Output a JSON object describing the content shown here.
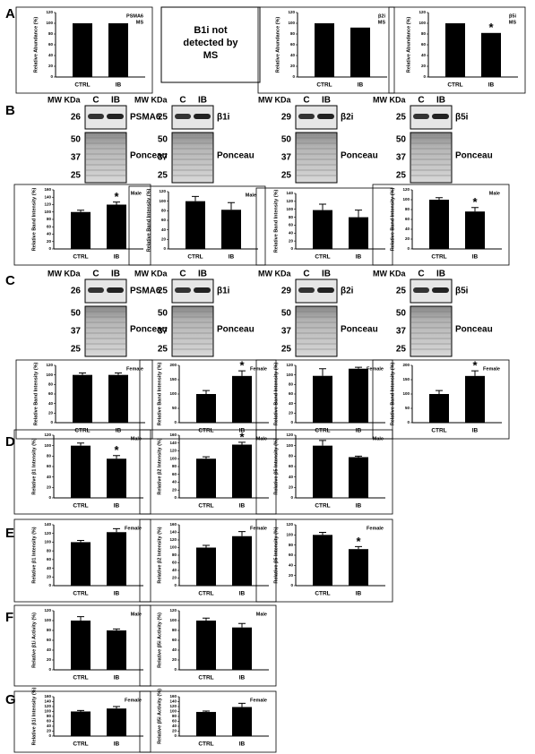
{
  "panels": [
    "A",
    "B",
    "C",
    "D",
    "E",
    "F",
    "G"
  ],
  "ms_note": [
    "B1i not",
    "detected by",
    "MS"
  ],
  "blots": [
    {
      "mw": "MW KDa",
      "lanes": [
        "C",
        "IB"
      ],
      "band_mw": "26",
      "protein": "PSMA6",
      "ponceau_mw": [
        "50",
        "37",
        "25"
      ],
      "ponceau": "Ponceau"
    },
    {
      "mw": "MW KDa",
      "lanes": [
        "C",
        "IB"
      ],
      "band_mw": "25",
      "protein": "β1i",
      "ponceau_mw": [
        "50",
        "37",
        "25"
      ],
      "ponceau": "Ponceau"
    },
    {
      "mw": "MW KDa",
      "lanes": [
        "C",
        "IB"
      ],
      "band_mw": "29",
      "protein": "β2i",
      "ponceau_mw": [
        "50",
        "37",
        "25"
      ],
      "ponceau": "Ponceau"
    },
    {
      "mw": "MW KDa",
      "lanes": [
        "C",
        "IB"
      ],
      "band_mw": "25",
      "protein": "β5i",
      "ponceau_mw": [
        "50",
        "37",
        "25"
      ],
      "ponceau": "Ponceau"
    },
    {
      "mw": "MW KDa",
      "lanes": [
        "C",
        "IB"
      ],
      "band_mw": "26",
      "protein": "PSMA6",
      "ponceau_mw": [
        "50",
        "37",
        "25"
      ],
      "ponceau": "Ponceau"
    },
    {
      "mw": "MW KDa",
      "lanes": [
        "C",
        "IB"
      ],
      "band_mw": "25",
      "protein": "β1i",
      "ponceau_mw": [
        "50",
        "37",
        "25"
      ],
      "ponceau": "Ponceau"
    },
    {
      "mw": "MW KDa",
      "lanes": [
        "C",
        "IB"
      ],
      "band_mw": "29",
      "protein": "β2i",
      "ponceau_mw": [
        "50",
        "37",
        "25"
      ],
      "ponceau": "Ponceau"
    },
    {
      "mw": "MW KDa",
      "lanes": [
        "C",
        "IB"
      ],
      "band_mw": "25",
      "protein": "β5i",
      "ponceau_mw": [
        "50",
        "37",
        "25"
      ],
      "ponceau": "Ponceau"
    }
  ],
  "chart_data": [
    {
      "type": "bar",
      "ylabel": "Relative Abundance (%)",
      "categories": [
        "CTRL",
        "IB"
      ],
      "values": [
        100,
        100
      ],
      "ylim": [
        0,
        120
      ],
      "yticks": [
        0,
        20,
        40,
        60,
        80,
        100,
        120
      ],
      "annotation": [
        "PSMA6",
        "MS"
      ],
      "color": "#000000"
    },
    {
      "type": "bar",
      "ylabel": "Relative Abundance (%)",
      "categories": [
        "CTRL",
        "IB"
      ],
      "values": [
        100,
        92
      ],
      "ylim": [
        0,
        120
      ],
      "yticks": [
        0,
        20,
        40,
        60,
        80,
        100,
        120
      ],
      "annotation": [
        "β2i",
        "MS"
      ],
      "color": "#000000"
    },
    {
      "type": "bar",
      "ylabel": "Relative Abundance (%)",
      "categories": [
        "CTRL",
        "IB"
      ],
      "values": [
        100,
        82
      ],
      "ylim": [
        0,
        120
      ],
      "yticks": [
        0,
        20,
        40,
        60,
        80,
        100,
        120
      ],
      "annotation": [
        "β5i",
        "MS"
      ],
      "significance": "*",
      "color": "#000000"
    },
    {
      "type": "bar",
      "ylabel": "Relative Band Intensity (%)",
      "categories": [
        "CTRL",
        "IB"
      ],
      "values": [
        100,
        120
      ],
      "errors": [
        5,
        7
      ],
      "ylim": [
        0,
        160
      ],
      "yticks": [
        0,
        20,
        40,
        60,
        80,
        100,
        120,
        140,
        160
      ],
      "annotation": [
        "Male"
      ],
      "significance": "*",
      "color": "#000000"
    },
    {
      "type": "bar",
      "ylabel": "Relative Band Intensity (%)",
      "categories": [
        "CTRL",
        "IB"
      ],
      "values": [
        100,
        82
      ],
      "errors": [
        10,
        15
      ],
      "ylim": [
        0,
        120
      ],
      "yticks": [
        0,
        20,
        40,
        60,
        80,
        100,
        120
      ],
      "annotation": [
        "Male"
      ],
      "color": "#000000"
    },
    {
      "type": "bar",
      "ylabel": "Relative Band Intensity (%)",
      "categories": [
        "CTRL",
        "IB"
      ],
      "values": [
        98,
        80
      ],
      "errors": [
        15,
        18
      ],
      "ylim": [
        0,
        140
      ],
      "yticks": [
        0,
        20,
        40,
        60,
        80,
        100,
        120,
        140
      ],
      "color": "#000000"
    },
    {
      "type": "bar",
      "ylabel": "Relative Band Intensity (%)",
      "categories": [
        "CTRL",
        "IB"
      ],
      "values": [
        100,
        76
      ],
      "errors": [
        4,
        8
      ],
      "ylim": [
        0,
        120
      ],
      "yticks": [
        0,
        20,
        40,
        60,
        80,
        100,
        120
      ],
      "annotation": [
        "Male"
      ],
      "significance": "*",
      "color": "#000000"
    },
    {
      "type": "bar",
      "ylabel": "Relative Band Intensity (%)",
      "categories": [
        "CTRL",
        "IB"
      ],
      "values": [
        100,
        100
      ],
      "errors": [
        4,
        4
      ],
      "ylim": [
        0,
        120
      ],
      "yticks": [
        0,
        20,
        40,
        60,
        80,
        100,
        120
      ],
      "annotation": [
        "Female"
      ],
      "color": "#000000"
    },
    {
      "type": "bar",
      "ylabel": "Relative Band Intensity (%)",
      "categories": [
        "CTRL",
        "IB"
      ],
      "values": [
        100,
        163
      ],
      "errors": [
        12,
        18
      ],
      "ylim": [
        0,
        200
      ],
      "yticks": [
        0,
        50,
        100,
        150,
        200
      ],
      "annotation": [
        "Female"
      ],
      "significance": "*",
      "color": "#000000"
    },
    {
      "type": "bar",
      "ylabel": "Relative Band Intensity (%)",
      "categories": [
        "CTRL",
        "IB"
      ],
      "values": [
        98,
        113
      ],
      "errors": [
        15,
        3
      ],
      "ylim": [
        0,
        120
      ],
      "yticks": [
        0,
        20,
        40,
        60,
        80,
        100,
        120
      ],
      "annotation": [
        "Female"
      ],
      "color": "#000000"
    },
    {
      "type": "bar",
      "ylabel": "Relative Band Intensity (%)",
      "categories": [
        "CTRL",
        "IB"
      ],
      "values": [
        100,
        163
      ],
      "errors": [
        12,
        18
      ],
      "ylim": [
        0,
        200
      ],
      "yticks": [
        0,
        50,
        100,
        150,
        200
      ],
      "annotation": [
        "Female"
      ],
      "significance": "*",
      "color": "#000000"
    },
    {
      "type": "bar",
      "ylabel": "Relative β1 Intensity (%)",
      "categories": [
        "CTRL",
        "IB"
      ],
      "values": [
        100,
        75
      ],
      "errors": [
        5,
        6
      ],
      "ylim": [
        0,
        120
      ],
      "yticks": [
        0,
        20,
        40,
        60,
        80,
        100,
        120
      ],
      "annotation": [
        "Male"
      ],
      "significance": "*",
      "color": "#000000"
    },
    {
      "type": "bar",
      "ylabel": "Relative β2 Intensity (%)",
      "categories": [
        "CTRL",
        "IB"
      ],
      "values": [
        100,
        136
      ],
      "errors": [
        5,
        6
      ],
      "ylim": [
        0,
        160
      ],
      "yticks": [
        0,
        20,
        40,
        60,
        80,
        100,
        120,
        140,
        160
      ],
      "annotation": [
        "Male"
      ],
      "significance": "*",
      "color": "#000000"
    },
    {
      "type": "bar",
      "ylabel": "Relative β5 Intensity (%)",
      "categories": [
        "CTRL",
        "IB"
      ],
      "values": [
        100,
        78
      ],
      "errors": [
        10,
        2
      ],
      "ylim": [
        0,
        120
      ],
      "yticks": [
        0,
        20,
        40,
        60,
        80,
        100,
        120
      ],
      "annotation": [
        "Male"
      ],
      "color": "#000000"
    },
    {
      "type": "bar",
      "ylabel": "Relative β1 Intensity (%)",
      "categories": [
        "CTRL",
        "IB"
      ],
      "values": [
        100,
        123
      ],
      "errors": [
        4,
        8
      ],
      "ylim": [
        0,
        140
      ],
      "yticks": [
        0,
        20,
        40,
        60,
        80,
        100,
        120,
        140
      ],
      "annotation": [
        "Female"
      ],
      "color": "#000000"
    },
    {
      "type": "bar",
      "ylabel": "Relative β2 Intensity (%)",
      "categories": [
        "CTRL",
        "IB"
      ],
      "values": [
        100,
        130
      ],
      "errors": [
        6,
        12
      ],
      "ylim": [
        0,
        160
      ],
      "yticks": [
        0,
        20,
        40,
        60,
        80,
        100,
        120,
        140,
        160
      ],
      "annotation": [
        "Female"
      ],
      "color": "#000000"
    },
    {
      "type": "bar",
      "ylabel": "Relative β5 Intensity (%)",
      "categories": [
        "CTRL",
        "IB"
      ],
      "values": [
        100,
        72
      ],
      "errors": [
        5,
        5
      ],
      "ylim": [
        0,
        120
      ],
      "yticks": [
        0,
        20,
        40,
        60,
        80,
        100,
        120
      ],
      "annotation": [
        "Female"
      ],
      "significance": "*",
      "color": "#000000"
    },
    {
      "type": "bar",
      "ylabel": "Relative β1i Activity (%)",
      "categories": [
        "CTRL",
        "IB"
      ],
      "values": [
        100,
        80
      ],
      "errors": [
        8,
        3
      ],
      "ylim": [
        0,
        120
      ],
      "yticks": [
        0,
        20,
        40,
        60,
        80,
        100,
        120
      ],
      "annotation": [
        "Male"
      ],
      "color": "#000000"
    },
    {
      "type": "bar",
      "ylabel": "Relative β5i Activity (%)",
      "categories": [
        "CTRL",
        "IB"
      ],
      "values": [
        100,
        86
      ],
      "errors": [
        5,
        8
      ],
      "ylim": [
        0,
        120
      ],
      "yticks": [
        0,
        20,
        40,
        60,
        80,
        100,
        120
      ],
      "annotation": [
        "Male"
      ],
      "color": "#000000"
    },
    {
      "type": "bar",
      "ylabel": "Relative β1i Intensity (%)",
      "categories": [
        "CTRL",
        "IB"
      ],
      "values": [
        100,
        112
      ],
      "errors": [
        4,
        8
      ],
      "ylim": [
        0,
        160
      ],
      "yticks": [
        0,
        20,
        40,
        60,
        80,
        100,
        120,
        140,
        160
      ],
      "annotation": [
        "Female"
      ],
      "color": "#000000"
    },
    {
      "type": "bar",
      "ylabel": "Relative β5i Activity (%)",
      "categories": [
        "CTRL",
        "IB"
      ],
      "values": [
        98,
        118
      ],
      "errors": [
        4,
        15
      ],
      "ylim": [
        0,
        160
      ],
      "yticks": [
        0,
        20,
        40,
        60,
        80,
        100,
        120,
        140,
        160
      ],
      "annotation": [
        "Female"
      ],
      "color": "#000000"
    }
  ]
}
